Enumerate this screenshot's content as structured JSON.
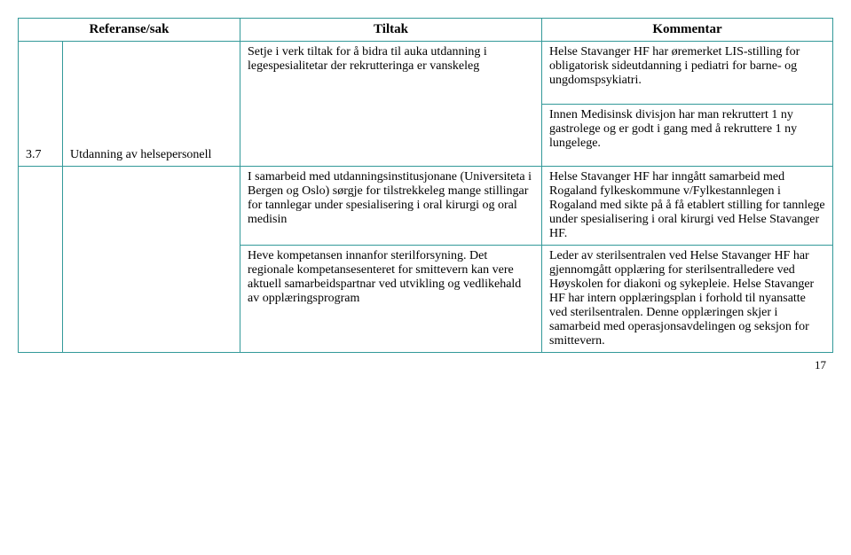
{
  "headers": {
    "ref": "Referanse/sak",
    "tiltak": "Tiltak",
    "kommentar": "Kommentar"
  },
  "row": {
    "refNum": "3.7",
    "refText": "Utdanning av helsepersonell"
  },
  "cells": {
    "r1_tiltak": "Setje i verk tiltak for å bidra til auka utdanning i legespesialitetar der rekrutteringa er vanskeleg",
    "r1_komm": "Helse Stavanger HF har øremerket LIS-stilling for obligatorisk sideutdanning i pediatri for barne- og ungdomspsykiatri.",
    "r2_komm": "Innen Medisinsk divisjon har man rekruttert 1 ny gastrolege og er godt i gang med å rekruttere 1 ny lungelege.",
    "r3_tiltak": "I samarbeid med utdanningsinstitusjonane (Universiteta i Bergen og Oslo) sørgje for tilstrekkeleg mange stillingar for tannlegar under spesialisering i oral kirurgi og oral medisin",
    "r3_komm": "Helse Stavanger HF har inngått samarbeid med Rogaland fylkeskommune v/Fylkestannlegen i Rogaland med sikte på å få etablert stilling for tannlege under spesialisering i oral kirurgi ved Helse Stavanger HF.",
    "r4_tiltak": "Heve kompetansen innanfor sterilforsyning. Det regionale kompetansesenteret for smittevern kan vere aktuell samarbeidspartnar ved utvikling og vedlikehald av opplæringsprogram",
    "r4_komm": "Leder av sterilsentralen ved Helse Stavanger HF har gjennomgått opplæring for sterilsentralledere ved Høyskolen for diakoni og sykepleie. Helse Stavanger HF har intern opplæringsplan i forhold til nyansatte ved sterilsentralen. Denne opplæringen skjer i samarbeid med operasjonsavdelingen og seksjon for smittevern."
  },
  "pageNumber": "17",
  "style": {
    "borderColor": "#339999",
    "fontFamily": "Times New Roman",
    "baseFontSize": 14,
    "headerFontSize": 15,
    "background": "#ffffff"
  }
}
